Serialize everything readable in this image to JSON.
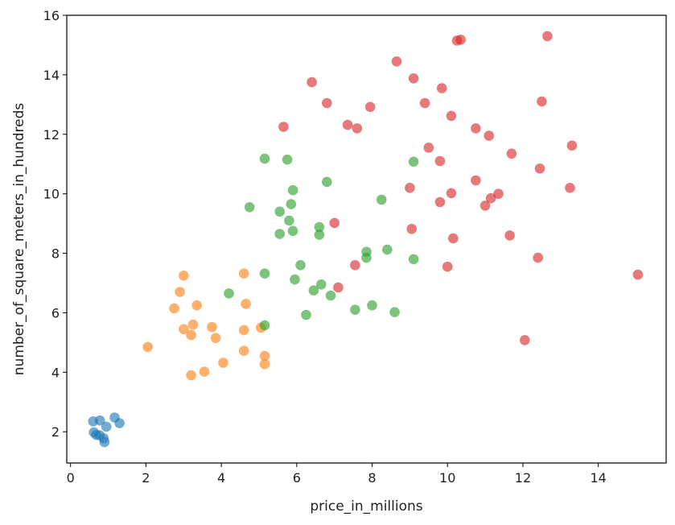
{
  "chart_data": {
    "type": "scatter",
    "title": "",
    "xlabel": "price_in_millions",
    "ylabel": "number_of_square_meters_in_hundreds",
    "xlim": [
      -0.1,
      15.8
    ],
    "ylim": [
      0.95,
      16.0
    ],
    "xticks": [
      "0",
      "2",
      "4",
      "6",
      "8",
      "10",
      "12",
      "14"
    ],
    "yticks": [
      "2",
      "4",
      "6",
      "8",
      "10",
      "12",
      "14",
      "16"
    ],
    "grid": false,
    "legend": false,
    "series": [
      {
        "color": "#1f77b4",
        "points": [
          [
            0.6,
            2.35
          ],
          [
            0.78,
            2.38
          ],
          [
            1.17,
            2.48
          ],
          [
            1.3,
            2.29
          ],
          [
            0.62,
            1.98
          ],
          [
            0.68,
            1.9
          ],
          [
            0.77,
            1.88
          ],
          [
            0.95,
            2.17
          ],
          [
            0.88,
            1.78
          ],
          [
            0.9,
            1.65
          ]
        ]
      },
      {
        "color": "#ff7f0e",
        "points": [
          [
            2.05,
            4.85
          ],
          [
            2.75,
            6.15
          ],
          [
            2.9,
            6.7
          ],
          [
            3.0,
            7.25
          ],
          [
            3.0,
            5.45
          ],
          [
            3.2,
            5.25
          ],
          [
            3.25,
            5.6
          ],
          [
            3.35,
            6.25
          ],
          [
            3.2,
            3.9
          ],
          [
            3.55,
            4.02
          ],
          [
            3.75,
            5.52
          ],
          [
            3.85,
            5.15
          ],
          [
            4.05,
            4.32
          ],
          [
            4.6,
            7.32
          ],
          [
            4.65,
            6.3
          ],
          [
            4.6,
            5.42
          ],
          [
            4.6,
            4.72
          ],
          [
            5.05,
            5.5
          ],
          [
            5.15,
            4.55
          ],
          [
            5.15,
            4.27
          ]
        ]
      },
      {
        "color": "#2ca02c",
        "points": [
          [
            4.2,
            6.65
          ],
          [
            4.75,
            9.55
          ],
          [
            5.15,
            11.18
          ],
          [
            5.15,
            7.32
          ],
          [
            5.15,
            5.58
          ],
          [
            5.55,
            9.4
          ],
          [
            5.55,
            8.65
          ],
          [
            5.75,
            11.15
          ],
          [
            5.8,
            9.1
          ],
          [
            5.85,
            9.65
          ],
          [
            5.9,
            10.12
          ],
          [
            5.9,
            8.75
          ],
          [
            5.95,
            7.12
          ],
          [
            6.1,
            7.6
          ],
          [
            6.25,
            5.93
          ],
          [
            6.45,
            6.75
          ],
          [
            6.6,
            8.88
          ],
          [
            6.6,
            8.62
          ],
          [
            6.65,
            6.95
          ],
          [
            6.8,
            10.4
          ],
          [
            6.9,
            6.58
          ],
          [
            7.55,
            6.1
          ],
          [
            7.85,
            8.05
          ],
          [
            7.85,
            7.85
          ],
          [
            8.0,
            6.25
          ],
          [
            8.25,
            9.8
          ],
          [
            8.4,
            8.12
          ],
          [
            8.6,
            6.02
          ],
          [
            9.1,
            11.08
          ],
          [
            9.1,
            7.8
          ]
        ]
      },
      {
        "color": "#d62728",
        "points": [
          [
            5.65,
            12.25
          ],
          [
            6.4,
            13.75
          ],
          [
            6.8,
            13.05
          ],
          [
            7.0,
            9.02
          ],
          [
            7.1,
            6.85
          ],
          [
            7.35,
            12.32
          ],
          [
            7.55,
            7.6
          ],
          [
            7.6,
            12.2
          ],
          [
            7.95,
            12.92
          ],
          [
            8.65,
            14.45
          ],
          [
            9.0,
            10.2
          ],
          [
            9.05,
            8.82
          ],
          [
            9.1,
            13.88
          ],
          [
            9.4,
            13.05
          ],
          [
            9.5,
            11.55
          ],
          [
            9.8,
            11.1
          ],
          [
            9.8,
            9.72
          ],
          [
            9.85,
            13.55
          ],
          [
            10.0,
            7.55
          ],
          [
            10.1,
            12.62
          ],
          [
            10.1,
            10.02
          ],
          [
            10.15,
            8.5
          ],
          [
            10.25,
            15.15
          ],
          [
            10.35,
            15.18
          ],
          [
            10.75,
            12.2
          ],
          [
            10.75,
            10.45
          ],
          [
            11.0,
            9.6
          ],
          [
            11.1,
            11.95
          ],
          [
            11.15,
            9.85
          ],
          [
            11.35,
            10.0
          ],
          [
            11.65,
            8.6
          ],
          [
            11.7,
            11.35
          ],
          [
            12.05,
            5.08
          ],
          [
            12.4,
            7.85
          ],
          [
            12.45,
            10.85
          ],
          [
            12.5,
            13.1
          ],
          [
            12.65,
            15.3
          ],
          [
            13.25,
            10.2
          ],
          [
            13.3,
            11.62
          ],
          [
            15.05,
            7.28
          ]
        ]
      }
    ]
  }
}
